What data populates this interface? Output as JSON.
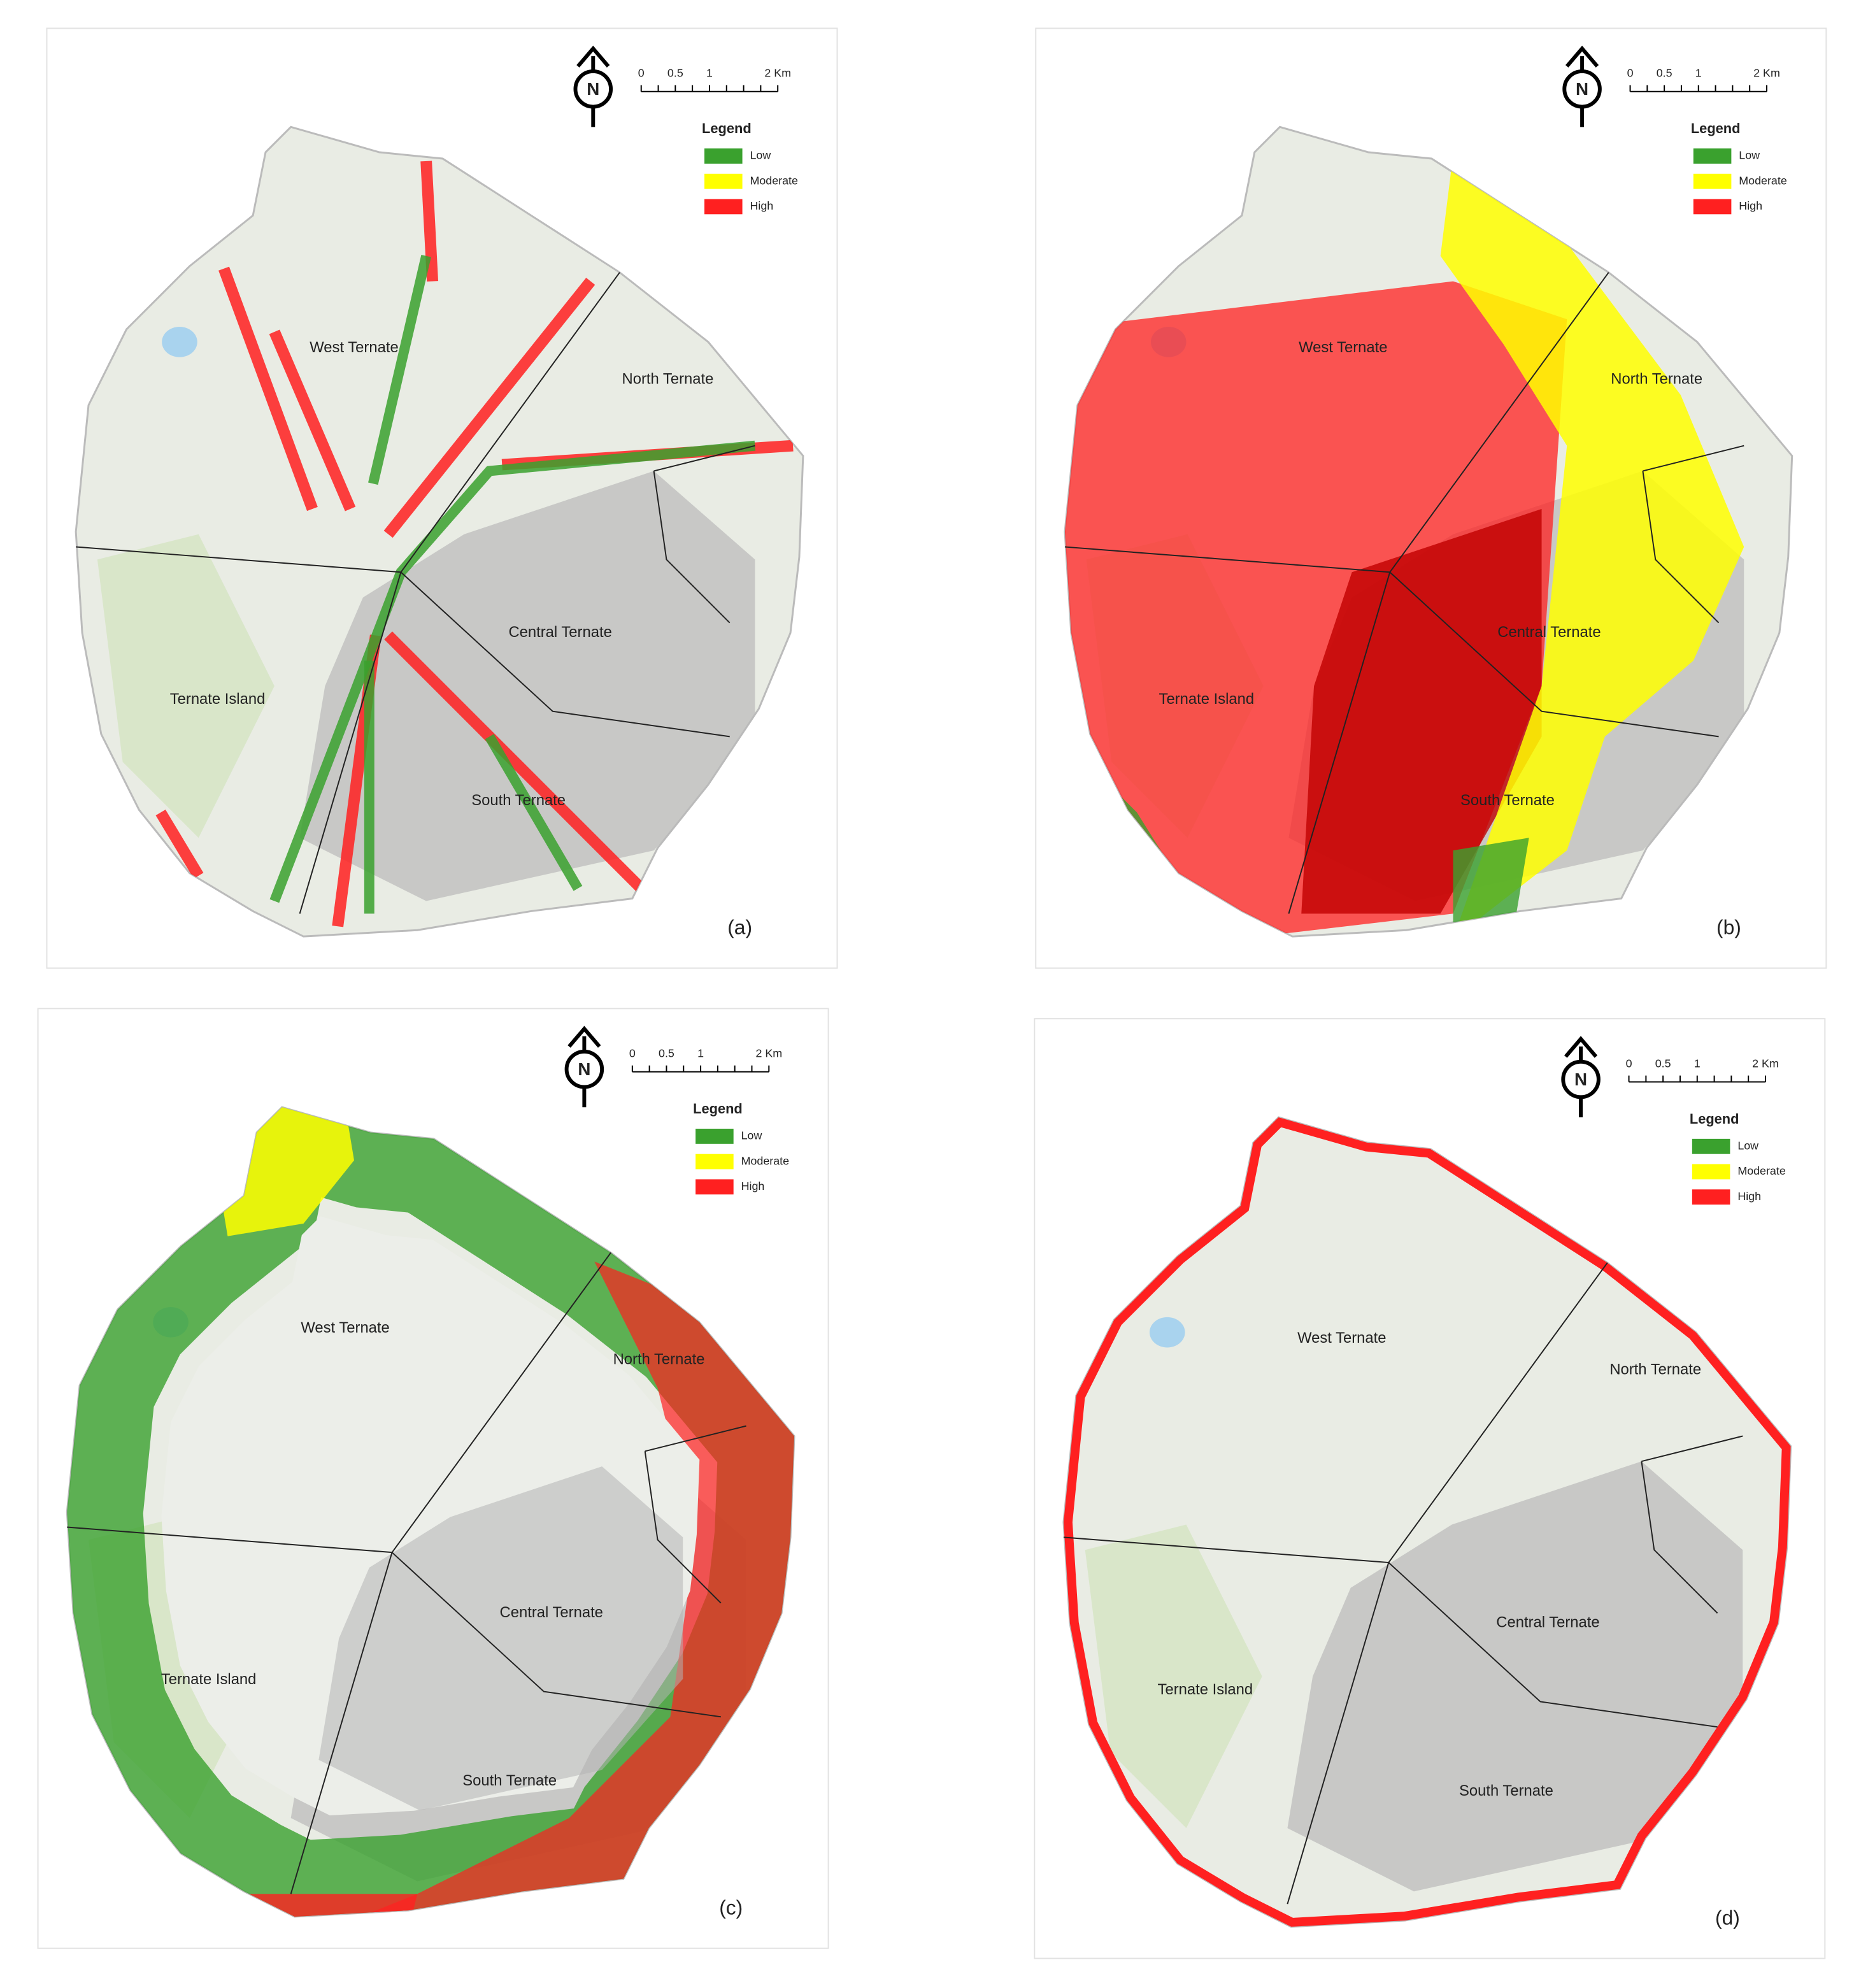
{
  "panels": [
    {
      "label": "(a)",
      "north": "N",
      "scale": [
        "0",
        "0.5",
        "1",
        "2 Km"
      ],
      "legend": {
        "title": "Legend",
        "items": [
          {
            "name": "Low",
            "color": "#3aa12e"
          },
          {
            "name": "Moderate",
            "color": "#ffff00"
          },
          {
            "name": "High",
            "color": "#ff2020"
          }
        ]
      },
      "places": [
        "West Ternate",
        "North Ternate",
        "Central Ternate",
        "Ternate Island",
        "South Ternate"
      ]
    },
    {
      "label": "(b)",
      "north": "N",
      "scale": [
        "0",
        "0.5",
        "1",
        "2 Km"
      ],
      "legend": {
        "title": "Legend",
        "items": [
          {
            "name": "Low",
            "color": "#3aa12e"
          },
          {
            "name": "Moderate",
            "color": "#ffff00"
          },
          {
            "name": "High",
            "color": "#ff2020"
          }
        ]
      },
      "places": [
        "West Ternate",
        "North Ternate",
        "Central Ternate",
        "Ternate Island",
        "South Ternate"
      ]
    },
    {
      "label": "(c)",
      "north": "N",
      "scale": [
        "0",
        "0.5",
        "1",
        "2 Km"
      ],
      "legend": {
        "title": "Legend",
        "items": [
          {
            "name": "Low",
            "color": "#3aa12e"
          },
          {
            "name": "Moderate",
            "color": "#ffff00"
          },
          {
            "name": "High",
            "color": "#ff2020"
          }
        ]
      },
      "places": [
        "West Ternate",
        "North Ternate",
        "Central Ternate",
        "Ternate Island",
        "South Ternate"
      ]
    },
    {
      "label": "(d)",
      "north": "N",
      "scale": [
        "0",
        "0.5",
        "1",
        "2 Km"
      ],
      "legend": {
        "title": "Legend",
        "items": [
          {
            "name": "Low",
            "color": "#3aa12e"
          },
          {
            "name": "Moderate",
            "color": "#ffff00"
          },
          {
            "name": "High",
            "color": "#ff2020"
          }
        ]
      },
      "places": [
        "West Ternate",
        "North Ternate",
        "Central Ternate",
        "Ternate Island",
        "South Ternate"
      ]
    }
  ]
}
